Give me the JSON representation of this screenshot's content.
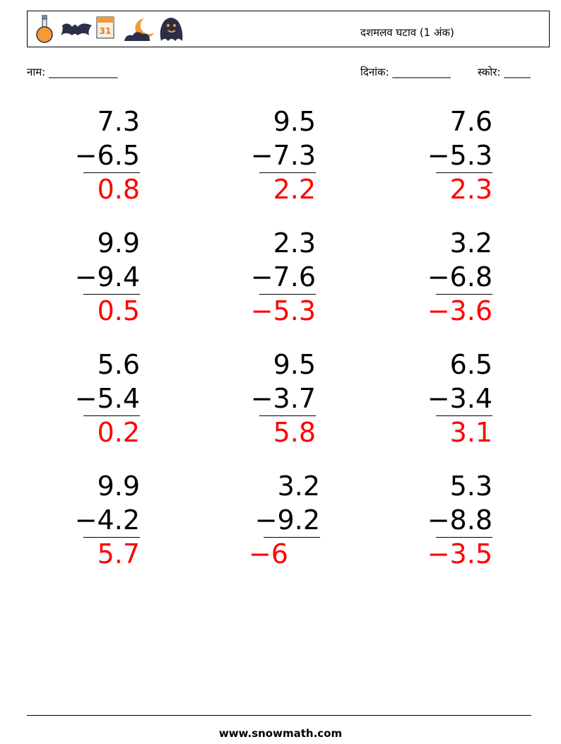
{
  "header": {
    "title": "दशमलव घटाव (1 अंक)",
    "name_label": "नाम: _____________",
    "date_label": "दिनांक: ___________",
    "score_label": "स्कोर: _____"
  },
  "problems": [
    {
      "top": "7.3",
      "bottom": "−6.5",
      "answer": "0.8"
    },
    {
      "top": "9.5",
      "bottom": "−7.3",
      "answer": "2.2"
    },
    {
      "top": "7.6",
      "bottom": "−5.3",
      "answer": "2.3"
    },
    {
      "top": "9.9",
      "bottom": "−9.4",
      "answer": "0.5"
    },
    {
      "top": "2.3",
      "bottom": "−7.6",
      "answer": "−5.3"
    },
    {
      "top": "3.2",
      "bottom": "−6.8",
      "answer": "−3.6"
    },
    {
      "top": "5.6",
      "bottom": "−5.4",
      "answer": "0.2"
    },
    {
      "top": "9.5",
      "bottom": "−3.7",
      "answer": "5.8"
    },
    {
      "top": "6.5",
      "bottom": "−3.4",
      "answer": "3.1"
    },
    {
      "top": "9.9",
      "bottom": "−4.2",
      "answer": "5.7"
    },
    {
      "top": "3.2",
      "bottom": "−9.2",
      "answer": "−6"
    },
    {
      "top": "5.3",
      "bottom": "−8.8",
      "answer": "−3.5"
    }
  ],
  "footer": {
    "website": "www.snowmath.com"
  }
}
